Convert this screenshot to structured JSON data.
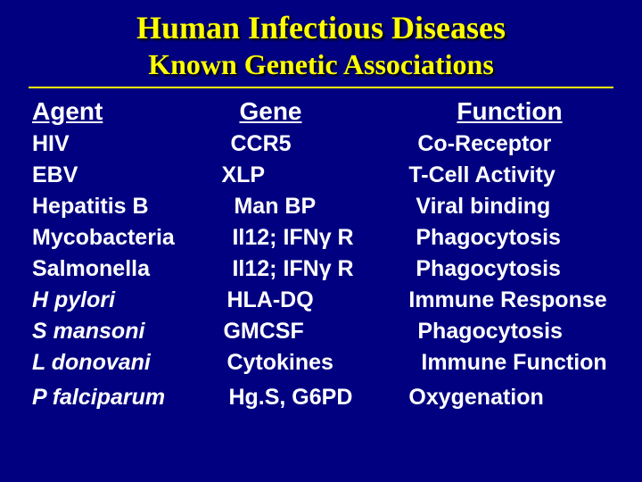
{
  "title": "Human Infectious Diseases",
  "subtitle": "Known Genetic Associations",
  "headers": {
    "agent": "Agent",
    "gene": "Gene",
    "function": "Function"
  },
  "rows": [
    {
      "agent": "HIV",
      "gene": "CCR5",
      "function": "Co-Receptor",
      "italic": false,
      "gene_pad": 10,
      "func_pad": 10
    },
    {
      "agent": "EBV",
      "gene": "XLP",
      "function": "T-Cell Activity",
      "italic": false,
      "gene_pad": 0,
      "func_pad": 0
    },
    {
      "agent": "Hepatitis B",
      "gene": "Man BP",
      "function": "Viral binding",
      "italic": false,
      "gene_pad": 14,
      "func_pad": 8
    },
    {
      "agent": "Mycobacteria",
      "gene": "Il12; IFNγ R",
      "function": "Phagocytosis",
      "italic": false,
      "gene_pad": 12,
      "func_pad": 8
    },
    {
      "agent": "Salmonella",
      "gene": "Il12; IFNγ R",
      "function": "Phagocytosis",
      "italic": false,
      "gene_pad": 12,
      "func_pad": 8
    },
    {
      "agent": "H pylori",
      "gene": "HLA-DQ",
      "function": "Immune Response",
      "italic": true,
      "gene_pad": 6,
      "func_pad": 0
    },
    {
      "agent": "S mansoni",
      "gene": "GMCSF",
      "function": "Phagocytosis",
      "italic": true,
      "gene_pad": 2,
      "func_pad": 10
    },
    {
      "agent": "L donovani",
      "gene": "Cytokines",
      "function": "Immune Function",
      "italic": true,
      "gene_pad": 6,
      "func_pad": 14
    },
    {
      "agent": "P falciparum",
      "gene": "Hg.S, G6PD",
      "function": "Oxygenation",
      "italic": true,
      "gene_pad": 8,
      "func_pad": 0
    }
  ],
  "colors": {
    "background": "#000080",
    "title_color": "#ffff00",
    "text_color": "#ffffff",
    "rule_color": "#ffff00"
  }
}
